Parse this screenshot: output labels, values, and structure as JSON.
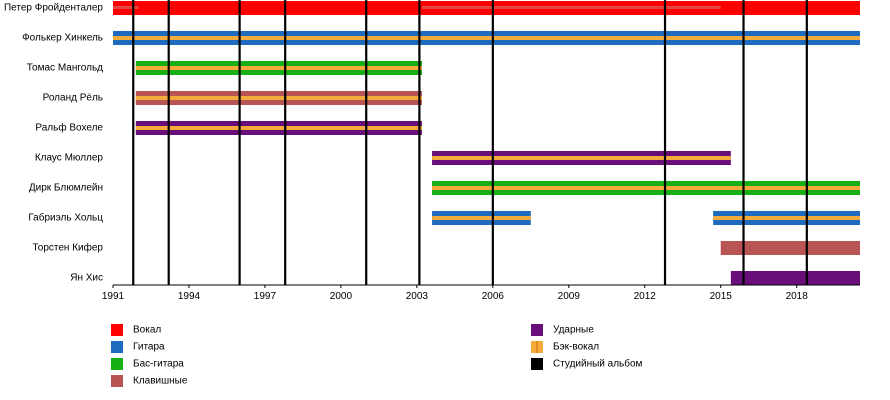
{
  "chart_data": {
    "type": "timeline",
    "x_axis": {
      "range": [
        1991.0,
        2020.5
      ],
      "ticks": [
        1991,
        1994,
        1997,
        2000,
        2003,
        2006,
        2009,
        2012,
        2015,
        2018
      ]
    },
    "roles": [
      {
        "key": "vocals",
        "label": "Вокал",
        "color": "#ff0000"
      },
      {
        "key": "guitar",
        "label": "Гитара",
        "color": "#1f6bbf"
      },
      {
        "key": "bass",
        "label": "Бас-гитара",
        "color": "#16b016"
      },
      {
        "key": "keys",
        "label": "Клавишные",
        "color": "#b85454"
      },
      {
        "key": "drums",
        "label": "Ударные",
        "color": "#6a0f7a"
      },
      {
        "key": "backing",
        "label": "Бэк-вокал",
        "color": "#f5ab3c"
      },
      {
        "key": "album",
        "label": "Студийный альбом",
        "color": "#000000"
      }
    ],
    "members": [
      {
        "name": "Петер Фройденталер",
        "periods": [
          {
            "start": 1991.0,
            "end": 2020.5,
            "role": "vocals"
          },
          {
            "start": 1991.0,
            "end": 1992.0,
            "role": "backing"
          },
          {
            "start": 2003.2,
            "end": 2015.0,
            "role": "backing"
          }
        ]
      },
      {
        "name": "Фолькер Хинкель",
        "periods": [
          {
            "start": 1991.0,
            "end": 2001.0,
            "role": "guitar",
            "backing": true
          },
          {
            "start": 2001.0,
            "end": 2020.5,
            "role": "guitar",
            "backing": true
          }
        ]
      },
      {
        "name": "Томас Мангольд",
        "periods": [
          {
            "start": 1991.9,
            "end": 2003.2,
            "role": "bass",
            "backing": true
          }
        ]
      },
      {
        "name": "Роланд Рёль",
        "periods": [
          {
            "start": 1991.9,
            "end": 2003.2,
            "role": "keys",
            "backing": true
          }
        ]
      },
      {
        "name": "Ральф Вохеле",
        "periods": [
          {
            "start": 1991.9,
            "end": 2003.2,
            "role": "drums",
            "backing": true
          }
        ]
      },
      {
        "name": "Клаус Мюллер",
        "periods": [
          {
            "start": 2003.6,
            "end": 2015.4,
            "role": "drums",
            "backing": true
          }
        ]
      },
      {
        "name": "Дирк Блюмлейн",
        "periods": [
          {
            "start": 2003.6,
            "end": 2020.5,
            "role": "bass",
            "backing": true
          }
        ]
      },
      {
        "name": "Габриэль Хольц",
        "periods": [
          {
            "start": 2003.6,
            "end": 2007.5,
            "role": "guitar",
            "backing": true
          },
          {
            "start": 2014.7,
            "end": 2020.5,
            "role": "guitar",
            "backing": true
          }
        ]
      },
      {
        "name": "Торстен Кифер",
        "periods": [
          {
            "start": 2015.0,
            "end": 2020.5,
            "role": "keys"
          }
        ]
      },
      {
        "name": "Ян Хис",
        "periods": [
          {
            "start": 2015.4,
            "end": 2020.5,
            "role": "drums"
          }
        ]
      }
    ],
    "albums": [
      1991.8,
      1993.2,
      1996.0,
      1997.8,
      2001.0,
      2003.1,
      2006.0,
      2012.8,
      2015.9,
      2018.4
    ],
    "legend": [
      {
        "role": "vocals",
        "column": 0
      },
      {
        "role": "guitar",
        "column": 0
      },
      {
        "role": "bass",
        "column": 0
      },
      {
        "role": "keys",
        "column": 0
      },
      {
        "role": "drums",
        "column": 1
      },
      {
        "role": "backing",
        "column": 1
      },
      {
        "role": "album",
        "column": 1
      }
    ]
  }
}
